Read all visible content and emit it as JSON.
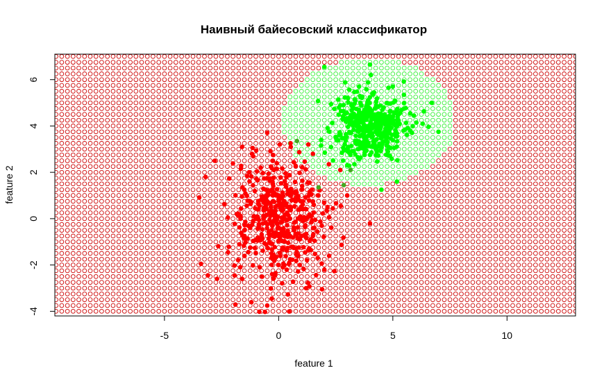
{
  "chart_data": {
    "type": "scatter",
    "title": "Наивный байесовский классификатор",
    "xlabel": "feature 1",
    "ylabel": "feature 2",
    "xlim": [
      -9.8,
      13.0
    ],
    "ylim": [
      -4.2,
      7.1
    ],
    "x_ticks": [
      -5,
      0,
      5,
      10
    ],
    "y_ticks": [
      -4,
      -2,
      0,
      2,
      4,
      6
    ],
    "x_tick_labels": [
      "-5",
      "0",
      "5",
      "10"
    ],
    "y_tick_labels": [
      "-4",
      "-2",
      "0",
      "2",
      "4",
      "6"
    ],
    "background_grid": {
      "step": 0.25,
      "marker": "open-circle",
      "default_class_color": "#cc0000",
      "class_region": {
        "color": "#33ee33",
        "description": "region predicted as second class",
        "center": [
          3.95,
          4.2
        ],
        "radius_x": 3.8,
        "radius_y": 2.75
      }
    },
    "series": [
      {
        "color": "#ff0000",
        "center": [
          0.0,
          0.0
        ],
        "sd": [
          1.0,
          1.3
        ],
        "count": 480,
        "examples": [
          [
            -3.4,
            -1.95
          ],
          [
            -3.1,
            -2.45
          ],
          [
            -2.7,
            -2.6
          ],
          [
            -3.2,
            1.8
          ],
          [
            -2.8,
            2.5
          ],
          [
            -1.6,
            3.1
          ],
          [
            -0.5,
            3.7
          ],
          [
            0.05,
            3.2
          ],
          [
            -1.6,
            -2.6
          ],
          [
            -0.5,
            -3.75
          ],
          [
            -0.3,
            -3.45
          ],
          [
            1.2,
            -3.0
          ],
          [
            1.9,
            -3.05
          ],
          [
            2.0,
            -2.2
          ],
          [
            4.0,
            -0.2
          ],
          [
            1.3,
            3.2
          ],
          [
            1.5,
            2.8
          ],
          [
            2.2,
            2.35
          ],
          [
            2.7,
            2.1
          ],
          [
            3.0,
            1.0
          ]
        ]
      },
      {
        "color": "#00ff00",
        "center": [
          4.0,
          4.0
        ],
        "sd": [
          0.8,
          0.75
        ],
        "count": 460,
        "examples": [
          [
            2.0,
            6.55
          ],
          [
            4.0,
            6.65
          ],
          [
            6.7,
            5.0
          ],
          [
            7.0,
            3.75
          ],
          [
            3.0,
            2.3
          ],
          [
            4.5,
            1.25
          ],
          [
            5.0,
            5.7
          ],
          [
            3.4,
            4.0
          ],
          [
            4.2,
            3.2
          ],
          [
            4.6,
            4.8
          ]
        ]
      },
      {
        "color": "#44aa22",
        "examples": [
          [
            0.8,
            3.35
          ],
          [
            2.85,
            1.45
          ],
          [
            3.15,
            2.1
          ],
          [
            1.75,
            1.35
          ]
        ]
      }
    ]
  }
}
